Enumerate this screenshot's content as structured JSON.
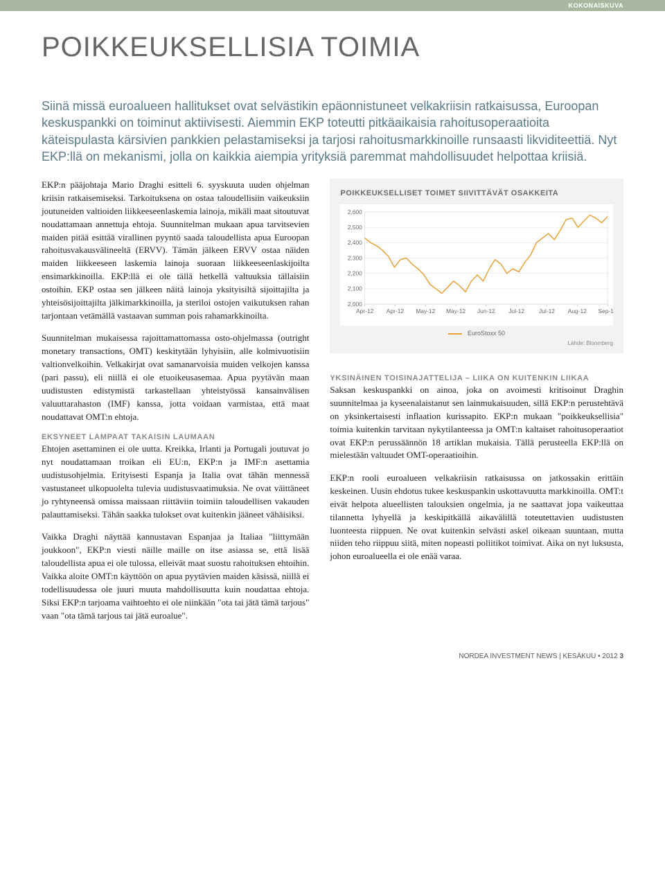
{
  "header_category": "KOKONAISKUVA",
  "title": "POIKKEUKSELLISIA TOIMIA",
  "intro": "Siinä missä euroalueen hallitukset ovat selvästikin epäonnistuneet velkakriisin ratkaisussa, Euroopan keskuspankki on toiminut aktiivisesti. Aiemmin EKP toteutti pitkäaikaisia rahoitusoperaatioita käteispulasta kärsivien pankkien pelastamiseksi ja tarjosi rahoitusmarkkinoille runsaasti likviditeettiä. Nyt EKP:llä on mekanismi, jolla on kaikkia aiempia yrityksiä paremmat mahdollisuudet helpottaa kriisiä.",
  "left": {
    "p1": "EKP:n pääjohtaja Mario Draghi esitteli 6. syyskuuta uuden ohjelman kriisin ratkaisemiseksi. Tarkoituksena on ostaa taloudellisiin vaikeuksiin joutuneiden valtioiden liikkeeseenlaskemia lainoja, mikäli maat sitoutuvat noudattamaan annettuja ehtoja. Suunnitelman mukaan apua tarvitsevien maiden pitää esittää virallinen pyyntö saada taloudellista apua Euroopan rahoitusvakausvälineeltä (ERVV). Tämän jälkeen ERVV ostaa näiden maiden liikkeeseen laskemia lainoja suoraan liikkeeseenlaskijoilta ensimarkkinoilla. EKP:llä ei ole tällä hetkellä valtuuksia tällaisiin ostoihin. EKP ostaa sen jälkeen näitä lainoja yksityisiltä sijoittajilta ja yhteisösijoittajilta jälkimarkkinoilla, ja steriloi ostojen vaikutuksen rahan tarjontaan vetämällä vastaavan summan pois rahamarkkinoilta.",
    "p2": "Suunnitelman mukaisessa rajoittamattomassa osto-ohjelmassa (outright monetary transactions, OMT) keskitytään lyhyisiin, alle kolmivuotisiin valtionvelkoihin. Velkakirjat ovat samanarvoisia muiden velkojen kanssa (pari passu), eli niillä ei ole etuoikeusasemaa. Apua pyytävän maan uudistusten edistymistä tarkastellaan yhteistyössä kansainvälisen valuuttarahaston (IMF) kanssa, jotta voidaan varmistaa, että maat noudattavat OMT:n ehtoja.",
    "h1": "EKSYNEET LAMPAAT TAKAISIN LAUMAAN",
    "p3": "Ehtojen asettaminen ei ole uutta. Kreikka, Irlanti ja Portugali joutuvat jo nyt noudattamaan troikan eli EU:n, EKP:n ja IMF:n asettamia uudistusohjelmia. Erityisesti Espanja ja Italia ovat tähän mennessä vastustaneet ulkopuolelta tulevia uudistusvaatimuksia. Ne ovat väittäneet jo ryhtyneensä omissa maissaan riittäviin toimiin taloudellisen vakauden palauttamiseksi. Tähän saakka tulokset ovat kuitenkin jääneet vähäisiksi.",
    "p4": "Vaikka Draghi näyttää kannustavan Espanjaa ja Italiaa \"liittymään joukkoon\", EKP:n viesti näille maille on itse asiassa se, että lisää taloudellista apua ei ole tulossa, elleivät maat suostu rahoituksen ehtoihin. Vaikka aloite OMT:n käyttöön on apua pyytävien maiden käsissä, niillä ei todellisuudessa ole juuri muuta mahdollisuutta kuin noudattaa ehtoja. Siksi EKP:n tarjoama vaihtoehto ei ole niinkään \"ota tai jätä tämä tarjous\" vaan \"ota tämä tarjous tai jätä euroalue\"."
  },
  "right": {
    "h1": "YKSINÄINEN TOISINAJATTELIJA – LIIKA ON KUITENKIN LIIKAA",
    "p1": "Saksan keskuspankki on ainoa, joka on avoimesti kritisoinut Draghin suunnitelmaa ja kyseenalaistanut sen lainmukaisuuden, sillä EKP:n perustehtävä on yksinkertaisesti inflaation kurissapito. EKP:n mukaan \"poikkeuksellisia\" toimia kuitenkin tarvitaan nykytilanteessa ja OMT:n kaltaiset rahoitusoperaatiot ovat EKP:n perussäännön 18 artiklan mukaisia. Tällä perusteella EKP:llä on mielestään valtuudet OMT-operaatioihin.",
    "p2": "EKP:n rooli euroalueen velkakriisin ratkaisussa on jatkossakin erittäin keskeinen. Uusin ehdotus tukee keskuspankin uskottavuutta markkinoilla. OMT:t eivät helpota alueellisten talouksien ongelmia, ja ne saattavat jopa vaikeuttaa tilannetta lyhyellä ja keskipitkällä aikavälillä toteutettavien uudistusten luonteesta riippuen. Ne ovat kuitenkin selvästi askel oikeaan suuntaan, mutta niiden teho riippuu siitä, miten nopeasti poliitikot toimivat. Aika on nyt luksusta, johon euroalueella ei ole enää varaa."
  },
  "chart": {
    "title": "POIKKEUKSELLISET TOIMET SIIVITTÄVÄT OSAKKEITA",
    "type": "line",
    "legend_label": "EuroStoxx 50",
    "source": "Lähde: Bloomberg",
    "line_color": "#e8a23a",
    "background_color": "#ffffff",
    "panel_background": "#f2f2f0",
    "grid_color": "#d9d9d9",
    "axis_font_size": 9,
    "ylim": [
      2000,
      2600
    ],
    "ytick_step": 100,
    "yticks": [
      2000,
      2100,
      2200,
      2300,
      2400,
      2500,
      2600
    ],
    "xticks": [
      "Apr-12",
      "Apr-12",
      "May-12",
      "May-12",
      "Jun-12",
      "Jul-12",
      "Jul-12",
      "Aug-12",
      "Sep-12"
    ],
    "values": [
      2430,
      2400,
      2380,
      2350,
      2310,
      2240,
      2290,
      2300,
      2260,
      2230,
      2190,
      2130,
      2100,
      2070,
      2110,
      2150,
      2120,
      2080,
      2150,
      2190,
      2150,
      2230,
      2290,
      2260,
      2200,
      2230,
      2210,
      2270,
      2320,
      2400,
      2430,
      2460,
      2420,
      2480,
      2550,
      2560,
      2500,
      2540,
      2580,
      2560,
      2530,
      2570
    ]
  },
  "footer": {
    "text": "NORDEA INVESTMENT NEWS | KESÄKUU • 2012",
    "page": "3"
  }
}
